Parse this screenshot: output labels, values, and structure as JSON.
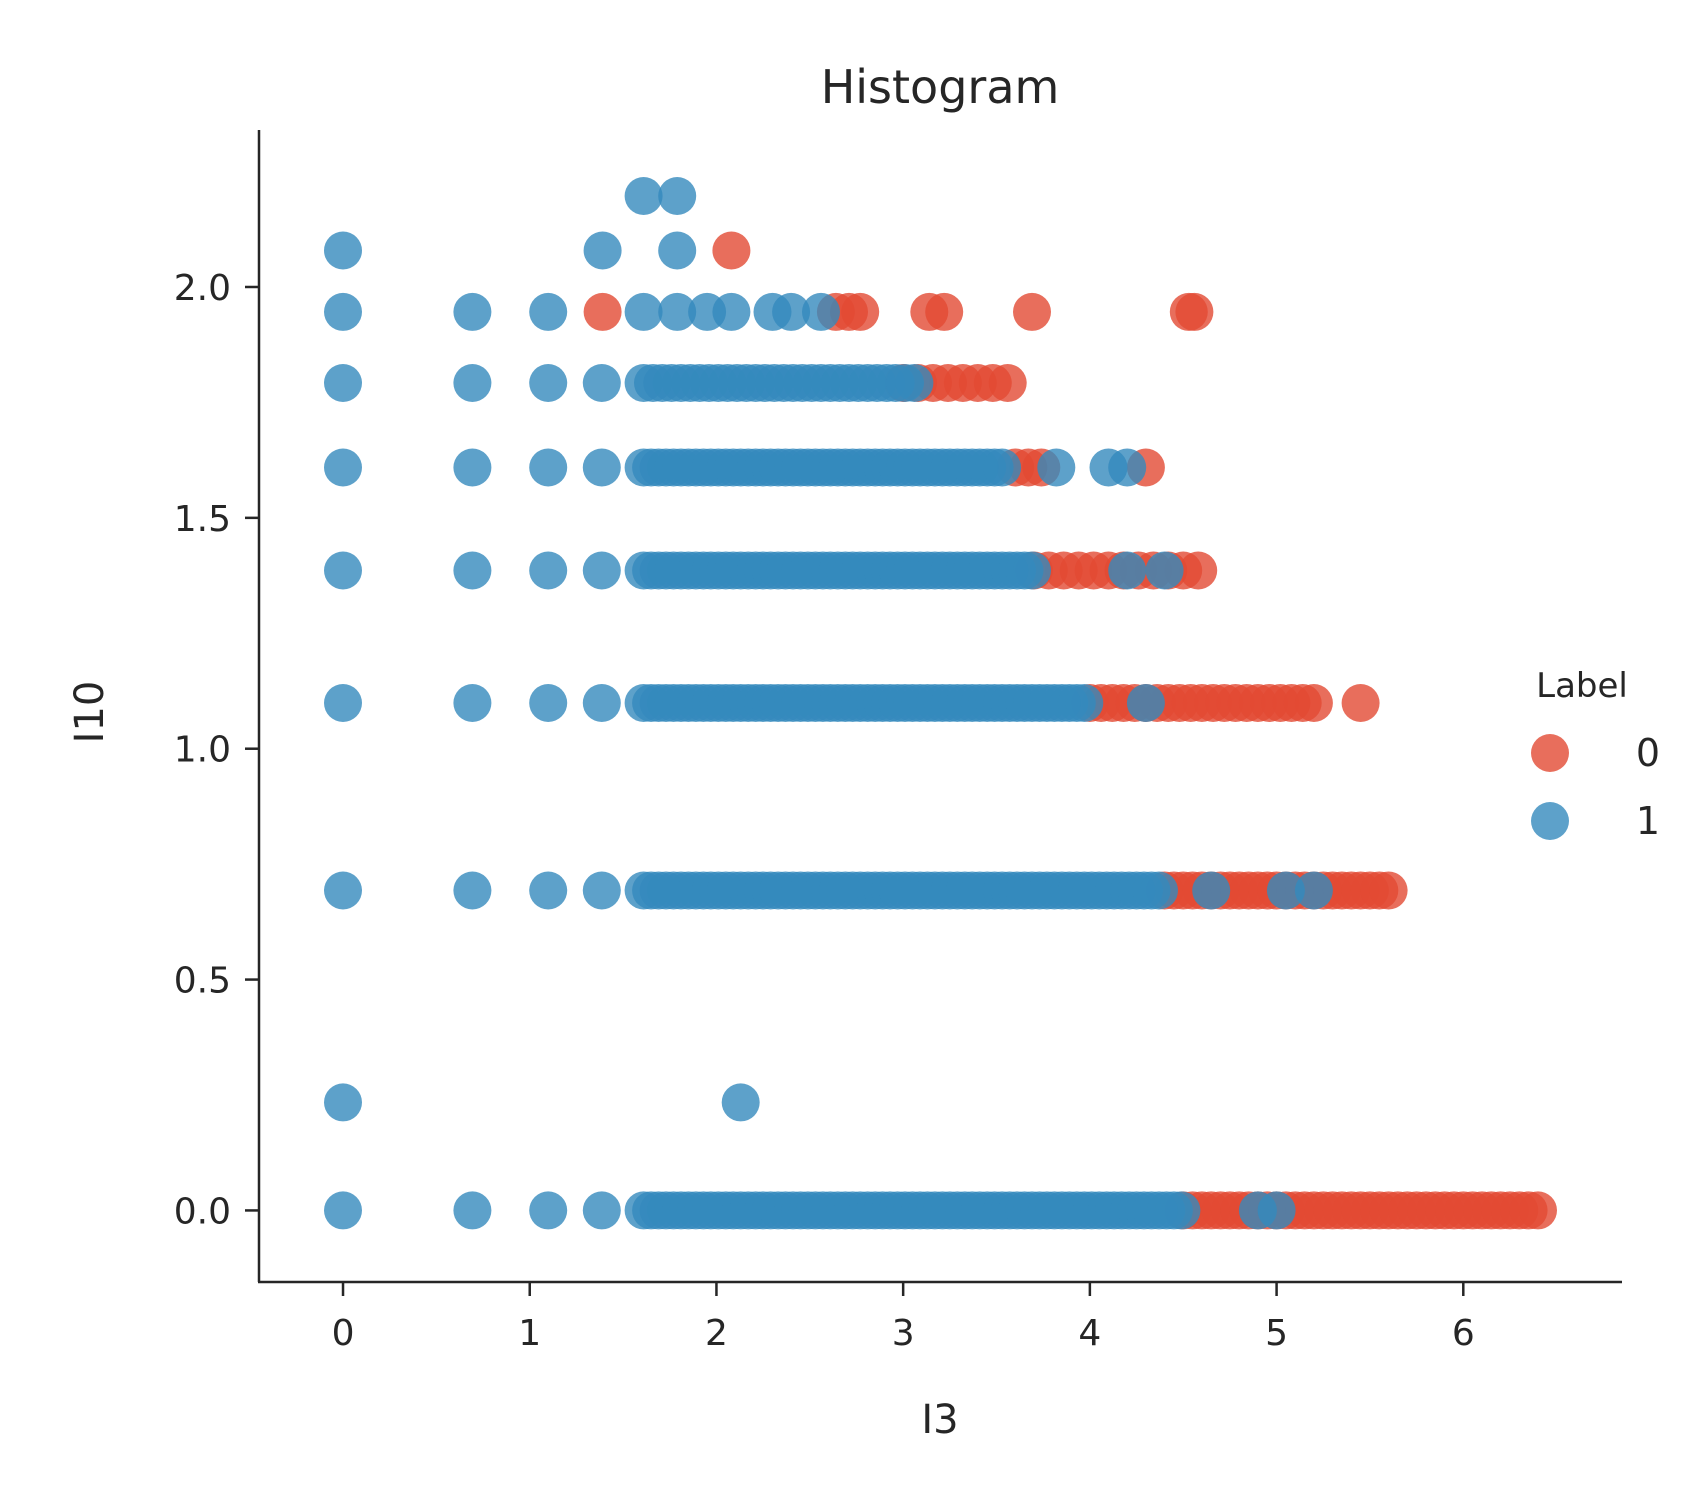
{
  "chart_data": {
    "type": "scatter",
    "title": "Histogram",
    "xlabel": "I3",
    "ylabel": "I10",
    "xlim": [
      -0.45,
      6.85
    ],
    "ylim": [
      -0.155,
      2.34
    ],
    "x_ticks": [
      0,
      1,
      2,
      3,
      4,
      5,
      6
    ],
    "y_ticks": [
      0.0,
      0.5,
      1.0,
      1.5,
      2.0
    ],
    "x_tick_labels": [
      "0",
      "1",
      "2",
      "3",
      "4",
      "5",
      "6"
    ],
    "y_tick_labels": [
      "0.0",
      "0.5",
      "1.0",
      "1.5",
      "2.0"
    ],
    "grid": false,
    "legend": {
      "title": "Label",
      "placement": "center-right outside",
      "entries": [
        {
          "label": "0",
          "color": "#e24a33"
        },
        {
          "label": "1",
          "color": "#348abd"
        }
      ]
    },
    "series": [
      {
        "name": "0",
        "color": "#e24a33",
        "rows": [
          {
            "y": 0.0,
            "x_min": 4.5,
            "x_max": 6.42,
            "step": 0.05
          },
          {
            "y": 0.693,
            "x_min": 4.4,
            "x_max": 5.62,
            "step": 0.05
          },
          {
            "y": 1.099,
            "x_min": 4.0,
            "x_max": 5.2,
            "step": 0.06,
            "extra_x": [
              5.45
            ]
          },
          {
            "y": 1.386,
            "x_min": 3.7,
            "x_max": 4.5,
            "step": 0.08,
            "extra_x": [
              4.58
            ]
          },
          {
            "y": 1.609,
            "x_min": 3.6,
            "x_max": 3.8,
            "step": 0.07,
            "extra_x": [
              4.3
            ]
          },
          {
            "y": 1.792,
            "x_min": 3.0,
            "x_max": 3.6,
            "step": 0.08
          },
          {
            "y": 1.946,
            "x_min": 1.39,
            "x_max": 1.39,
            "step": 0.1,
            "extra_x": [
              2.64,
              2.71,
              2.77,
              3.14,
              3.22,
              3.69,
              4.53,
              4.56
            ]
          },
          {
            "y": 2.079,
            "x_min": 2.08,
            "x_max": 2.08,
            "step": 0.1
          }
        ]
      },
      {
        "name": "1",
        "color": "#348abd",
        "rows": [
          {
            "y": 0.0,
            "x_min": 1.61,
            "x_max": 4.5,
            "step": 0.04,
            "extra_x": [
              0.0,
              0.693,
              1.099,
              1.386,
              4.9,
              5.0
            ]
          },
          {
            "y": 0.693,
            "x_min": 1.61,
            "x_max": 4.4,
            "step": 0.04,
            "extra_x": [
              0.0,
              0.693,
              1.099,
              1.386,
              4.65,
              5.05,
              5.2
            ]
          },
          {
            "y": 1.099,
            "x_min": 1.61,
            "x_max": 4.0,
            "step": 0.04,
            "extra_x": [
              0.0,
              0.693,
              1.099,
              1.386,
              4.3
            ]
          },
          {
            "y": 1.386,
            "x_min": 1.61,
            "x_max": 3.7,
            "step": 0.04,
            "extra_x": [
              0.0,
              0.693,
              1.099,
              1.386,
              4.2,
              4.4
            ]
          },
          {
            "y": 1.609,
            "x_min": 1.61,
            "x_max": 3.55,
            "step": 0.04,
            "extra_x": [
              0.0,
              0.693,
              1.099,
              1.386,
              3.82,
              4.1,
              4.2
            ]
          },
          {
            "y": 1.792,
            "x_min": 1.61,
            "x_max": 3.1,
            "step": 0.05,
            "extra_x": [
              0.0,
              0.693,
              1.099,
              1.386
            ]
          },
          {
            "y": 1.946,
            "x_min": 1.61,
            "x_max": 1.61,
            "step": 0.1,
            "extra_x": [
              0.0,
              0.693,
              1.099,
              1.79,
              1.95,
              2.08,
              2.3,
              2.4,
              2.56
            ]
          },
          {
            "y": 2.079,
            "x_min": 0.0,
            "x_max": 0.0,
            "step": 0.1,
            "extra_x": [
              1.39,
              1.79
            ]
          },
          {
            "y": 2.197,
            "x_min": 1.61,
            "x_max": 1.61,
            "step": 0.1,
            "extra_x": [
              1.79
            ]
          },
          {
            "y": 0.234,
            "x_min": 0.0,
            "x_max": 0.0,
            "step": 0.1,
            "extra_x": [
              2.13
            ]
          }
        ]
      }
    ]
  }
}
